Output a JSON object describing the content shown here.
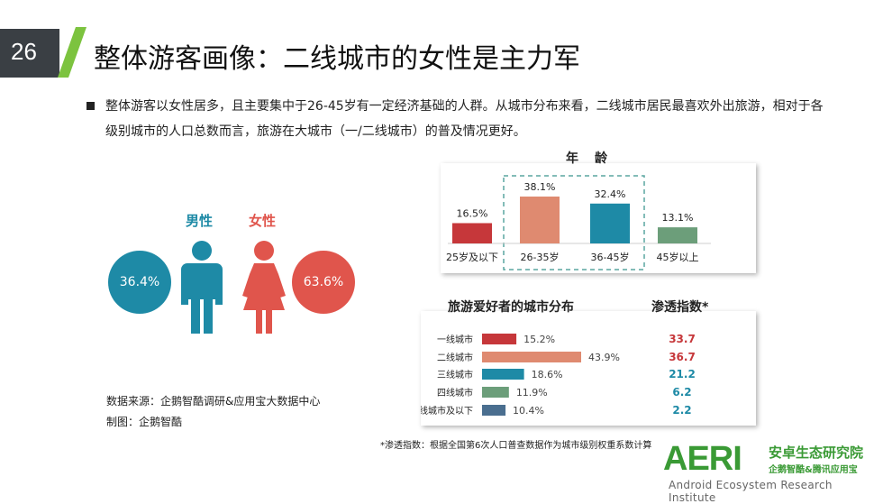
{
  "header": {
    "slide_number": "26",
    "title": "整体游客画像：二线城市的女性是主力军"
  },
  "summary": "整体游客以女性居多，且主要集中于26-45岁有一定经济基础的人群。从城市分布来看，二线城市居民最喜欢外出旅游，相对于各级别城市的人口总数而言，旅游在大城市（一/二线城市）的普及情况更好。",
  "gender": {
    "male_label": "男性",
    "female_label": "女性",
    "male_pct": "36.4%",
    "female_pct": "63.6%",
    "male_color": "#1e8aa6",
    "female_color": "#e0554c",
    "male_icon": "male-person-icon",
    "female_icon": "female-person-icon"
  },
  "source": {
    "line1": "数据来源：企鹅智酷调研&应用宝大数据中心",
    "line2": "制图：企鹅智酷"
  },
  "footnote": "*渗透指数：根据全国第6次人口普查数据作为城市级别权重系数计算",
  "logo": {
    "mark": "AERI",
    "name_cn": "安卓生态研究院",
    "partners": "企鹅智酷&腾讯应用宝",
    "name_en": "Android Ecosystem Research Institute",
    "color": "#3a9a35"
  },
  "chart_data": [
    {
      "type": "bar",
      "title": "年龄",
      "categories": [
        "25岁及以下",
        "26-35岁",
        "36-45岁",
        "45岁以上"
      ],
      "values": [
        16.5,
        38.1,
        32.4,
        13.1
      ],
      "value_labels": [
        "16.5%",
        "38.1%",
        "32.4%",
        "13.1%"
      ],
      "colors": [
        "#c6373a",
        "#df8a70",
        "#1e8aa6",
        "#6c9e7a"
      ],
      "ylim": [
        0,
        40
      ],
      "highlighted_categories": [
        "26-35岁",
        "36-45岁"
      ],
      "grid": false
    },
    {
      "type": "bar",
      "orientation": "horizontal",
      "title": "旅游爱好者的城市分布",
      "categories": [
        "一线城市",
        "二线城市",
        "三线城市",
        "四线城市",
        "五线城市及以下"
      ],
      "values": [
        15.2,
        43.9,
        18.6,
        11.9,
        10.4
      ],
      "value_labels": [
        "15.2%",
        "43.9%",
        "18.6%",
        "11.9%",
        "10.4%"
      ],
      "colors": [
        "#c6373a",
        "#df8a70",
        "#1e8aa6",
        "#6c9e7a",
        "#4a6e8f"
      ],
      "xlim": [
        0,
        45
      ],
      "grid": false,
      "index_title": "渗透指数*",
      "index_values": [
        "33.7",
        "36.7",
        "21.2",
        "6.2",
        "2.2"
      ],
      "index_colors": [
        "#c6373a",
        "#c6373a",
        "#1e8aa6",
        "#1e8aa6",
        "#1e8aa6"
      ]
    }
  ]
}
